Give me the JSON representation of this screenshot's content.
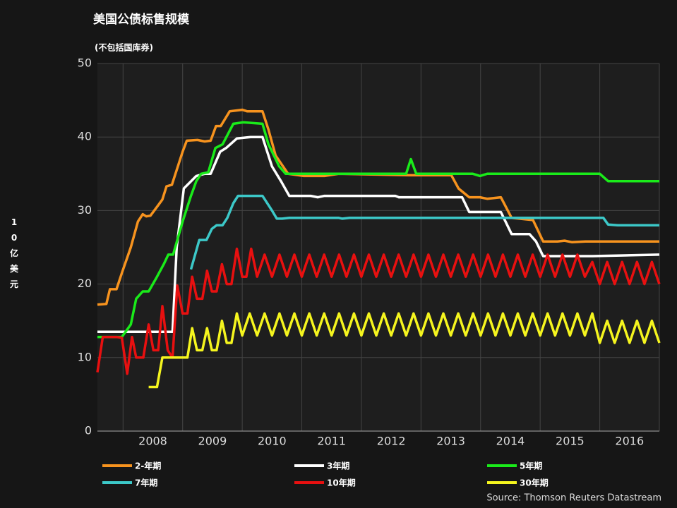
{
  "chart_data": {
    "type": "line",
    "title": "美国公债标售规模",
    "subtitle": "(不包括国库券)",
    "y_label": "10亿美元",
    "source": "Source: Thomson Reuters Datastream",
    "xlim": [
      2007.57,
      2017
    ],
    "ylim": [
      0,
      50
    ],
    "yticks": [
      0,
      10,
      20,
      30,
      40,
      50
    ],
    "xticks": [
      {
        "value": 2008.5,
        "label": "2008"
      },
      {
        "value": 2009.5,
        "label": "2009"
      },
      {
        "value": 2010.5,
        "label": "2010"
      },
      {
        "value": 2011.5,
        "label": "2011"
      },
      {
        "value": 2012.5,
        "label": "2012"
      },
      {
        "value": 2013.5,
        "label": "2013"
      },
      {
        "value": 2014.5,
        "label": "2014"
      },
      {
        "value": 2015.5,
        "label": "2015"
      },
      {
        "value": 2016.5,
        "label": "2016"
      }
    ],
    "xgrid": [
      2008,
      2009,
      2010,
      2011,
      2012,
      2013,
      2014,
      2015,
      2016,
      2017
    ],
    "grid": true,
    "series": [
      {
        "name": "2-年期",
        "color": "#f7931e",
        "x": [
          2007.57,
          2007.72,
          2007.78,
          2007.89,
          2007.98,
          2008.13,
          2008.25,
          2008.33,
          2008.39,
          2008.46,
          2008.57,
          2008.66,
          2008.73,
          2008.82,
          2009.0,
          2009.07,
          2009.25,
          2009.37,
          2009.47,
          2009.56,
          2009.64,
          2009.79,
          2010.0,
          2010.08,
          2010.34,
          2010.44,
          2010.56,
          2010.77,
          2011.03,
          2011.38,
          2011.62,
          2012.8,
          2013.51,
          2013.63,
          2013.81,
          2013.99,
          2014.11,
          2014.34,
          2014.52,
          2014.76,
          2014.88,
          2015.05,
          2015.29,
          2015.41,
          2015.53,
          2015.76,
          2017
        ],
        "values": [
          17.2,
          17.3,
          19.3,
          19.3,
          21.5,
          25,
          28.5,
          29.5,
          29.2,
          29.3,
          30.5,
          31.5,
          33.3,
          33.5,
          38,
          39.5,
          39.6,
          39.4,
          39.5,
          41.5,
          41.5,
          43.5,
          43.7,
          43.5,
          43.5,
          41,
          37.5,
          35,
          34.7,
          34.7,
          35,
          34.8,
          34.8,
          33,
          31.8,
          31.8,
          31.6,
          31.8,
          29,
          28.8,
          28.7,
          25.8,
          25.8,
          25.9,
          25.7,
          25.8,
          25.8
        ]
      },
      {
        "name": "3年期",
        "color": "#ffffff",
        "x": [
          2007.57,
          2008.83,
          2008.9,
          2009.02,
          2009.23,
          2009.37,
          2009.47,
          2009.63,
          2009.73,
          2009.91,
          2010.14,
          2010.34,
          2010.5,
          2010.65,
          2010.79,
          2011.15,
          2011.27,
          2011.38,
          2012.57,
          2012.63,
          2013.69,
          2013.81,
          2014.34,
          2014.52,
          2014.82,
          2014.93,
          2015.05,
          2015.88,
          2017
        ],
        "values": [
          13.5,
          13.5,
          25,
          33,
          34.7,
          35,
          35,
          38,
          38.5,
          39.8,
          40,
          40,
          36,
          34,
          32,
          32,
          31.8,
          32,
          32,
          31.8,
          31.8,
          29.8,
          29.8,
          26.8,
          26.8,
          25.8,
          23.8,
          23.8,
          24
        ]
      },
      {
        "name": "5年期",
        "color": "#1aeb1a",
        "x": [
          2007.57,
          2007.98,
          2008.13,
          2008.22,
          2008.33,
          2008.43,
          2008.57,
          2008.69,
          2008.76,
          2008.84,
          2009.0,
          2009.14,
          2009.23,
          2009.31,
          2009.43,
          2009.55,
          2009.67,
          2009.85,
          2010.02,
          2010.34,
          2010.44,
          2010.62,
          2010.73,
          2011.03,
          2012.75,
          2012.83,
          2012.92,
          2013.87,
          2013.99,
          2014.11,
          2016.0,
          2016.14,
          2017
        ],
        "values": [
          12.8,
          12.8,
          14.5,
          18,
          19,
          19,
          21,
          22.8,
          24,
          24,
          28.5,
          32,
          34,
          35,
          35.2,
          38.5,
          39,
          41.8,
          42,
          41.8,
          39,
          36,
          35,
          35,
          35,
          37,
          35,
          35,
          34.7,
          35,
          35,
          34,
          34
        ]
      },
      {
        "name": "7年期",
        "color": "#3cc8c8",
        "x": [
          2009.14,
          2009.28,
          2009.4,
          2009.49,
          2009.57,
          2009.67,
          2009.75,
          2009.85,
          2009.93,
          2010.34,
          2010.5,
          2010.58,
          2010.67,
          2010.79,
          2011.62,
          2011.68,
          2011.8,
          2016.06,
          2016.14,
          2016.3,
          2017
        ],
        "values": [
          22,
          26,
          26,
          27.5,
          28,
          28,
          29,
          31,
          32,
          32,
          30,
          28.9,
          28.9,
          29,
          29,
          28.9,
          29,
          29,
          28.1,
          28,
          28
        ]
      },
      {
        "name": "10年期",
        "color": "#e81010",
        "x": [
          2007.57,
          2007.66,
          2007.89,
          2007.98,
          2008.07,
          2008.15,
          2008.22,
          2008.34,
          2008.43,
          2008.51,
          2008.59,
          2008.66,
          2008.75,
          2008.83,
          2008.91,
          2009.0,
          2009.08,
          2009.16,
          2009.24,
          2009.33,
          2009.41,
          2009.49,
          2009.57,
          2009.66,
          2009.74,
          2009.82,
          2009.91,
          2010.0,
          2010.07,
          2010.15,
          2010.25,
          2010.375,
          2010.5,
          2010.625,
          2010.75,
          2010.875,
          2011,
          2011.125,
          2011.25,
          2011.375,
          2011.5,
          2011.625,
          2011.75,
          2011.875,
          2012,
          2012.125,
          2012.25,
          2012.375,
          2012.5,
          2012.625,
          2012.75,
          2012.875,
          2013,
          2013.125,
          2013.25,
          2013.375,
          2013.5,
          2013.625,
          2013.75,
          2013.875,
          2014,
          2014.125,
          2014.25,
          2014.375,
          2014.5,
          2014.625,
          2014.75,
          2014.875,
          2015,
          2015.125,
          2015.25,
          2015.375,
          2015.5,
          2015.625,
          2015.75,
          2015.875,
          2016,
          2016.125,
          2016.25,
          2016.375,
          2016.5,
          2016.625,
          2016.75,
          2016.875,
          2017
        ],
        "values": [
          8,
          12.8,
          12.8,
          12.7,
          7.8,
          12.8,
          10,
          10,
          14.5,
          11,
          11,
          17,
          11,
          10,
          19.8,
          16,
          16,
          21,
          18,
          18,
          21.8,
          19,
          19,
          22.7,
          20,
          20,
          24.8,
          21,
          21,
          24.8,
          21,
          24,
          21,
          24,
          21,
          24,
          21,
          24,
          21,
          24,
          21,
          24,
          21,
          24,
          21,
          24,
          21,
          24,
          21,
          24,
          21,
          24,
          21,
          24,
          21,
          24,
          21,
          24,
          21,
          24,
          21,
          24,
          21,
          24,
          21,
          24,
          21,
          24,
          21,
          24,
          21,
          24,
          21,
          24,
          21,
          23,
          20,
          23,
          20,
          23,
          20,
          23,
          20,
          23,
          20
        ]
      },
      {
        "name": "30年期",
        "color": "#f5f51e",
        "x": [
          2008.43,
          2008.57,
          2008.66,
          2009.08,
          2009.16,
          2009.24,
          2009.33,
          2009.41,
          2009.49,
          2009.57,
          2009.66,
          2009.74,
          2009.82,
          2009.91,
          2010,
          2010.125,
          2010.25,
          2010.375,
          2010.5,
          2010.625,
          2010.75,
          2010.875,
          2011,
          2011.125,
          2011.25,
          2011.375,
          2011.5,
          2011.625,
          2011.75,
          2011.875,
          2012,
          2012.125,
          2012.25,
          2012.375,
          2012.5,
          2012.625,
          2012.75,
          2012.875,
          2013,
          2013.125,
          2013.25,
          2013.375,
          2013.5,
          2013.625,
          2013.75,
          2013.875,
          2014,
          2014.125,
          2014.25,
          2014.375,
          2014.5,
          2014.625,
          2014.75,
          2014.875,
          2015,
          2015.125,
          2015.25,
          2015.375,
          2015.5,
          2015.625,
          2015.75,
          2015.875,
          2016,
          2016.125,
          2016.25,
          2016.375,
          2016.5,
          2016.625,
          2016.75,
          2016.875,
          2017
        ],
        "values": [
          6,
          6,
          10,
          10,
          14,
          11,
          11,
          14,
          11,
          11,
          15,
          12,
          12,
          16,
          13,
          16,
          13,
          16,
          13,
          16,
          13,
          16,
          13,
          16,
          13,
          16,
          13,
          16,
          13,
          16,
          13,
          16,
          13,
          16,
          13,
          16,
          13,
          16,
          13,
          16,
          13,
          16,
          13,
          16,
          13,
          16,
          13,
          16,
          13,
          16,
          13,
          16,
          13,
          16,
          13,
          16,
          13,
          16,
          13,
          16,
          13,
          16,
          12,
          15,
          12,
          15,
          12,
          15,
          12,
          15,
          12
        ]
      }
    ]
  }
}
